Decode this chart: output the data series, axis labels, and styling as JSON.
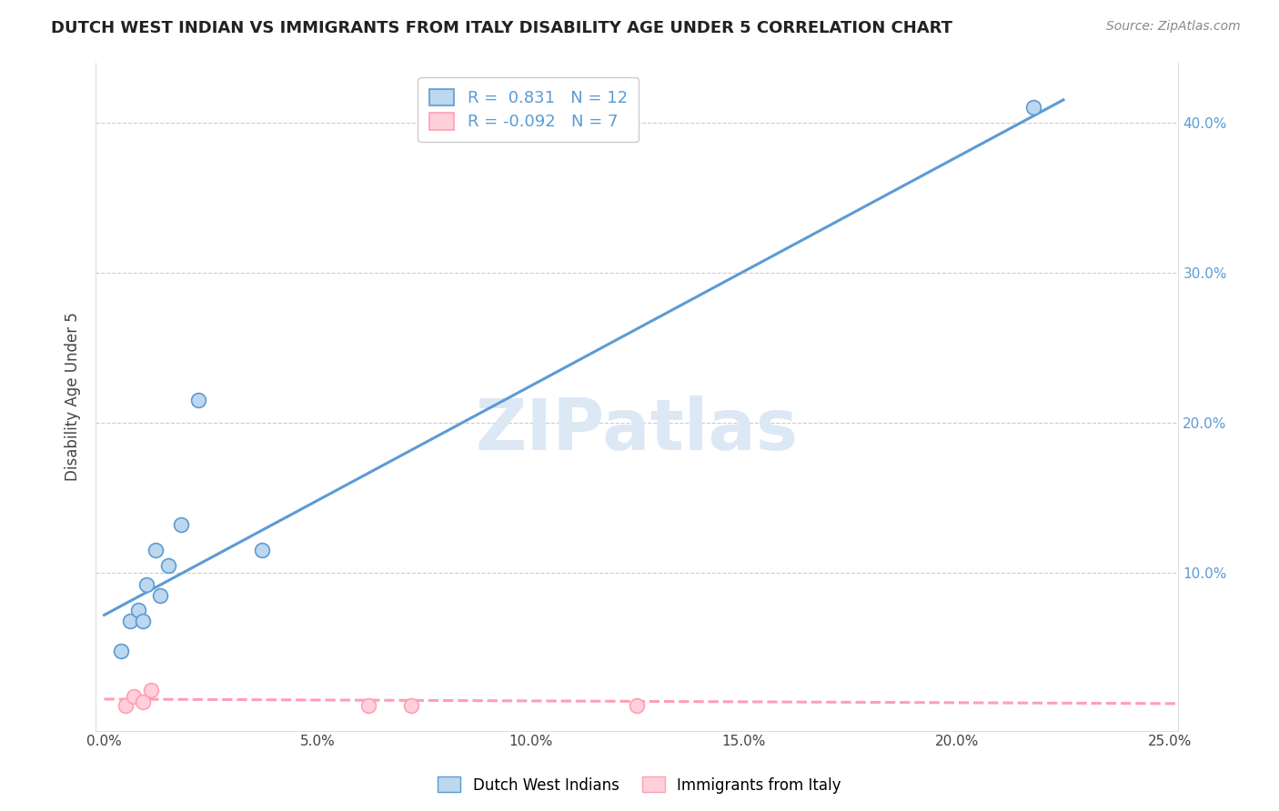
{
  "title": "DUTCH WEST INDIAN VS IMMIGRANTS FROM ITALY DISABILITY AGE UNDER 5 CORRELATION CHART",
  "source": "Source: ZipAtlas.com",
  "xlabel": "",
  "ylabel": "Disability Age Under 5",
  "xlim": [
    -0.002,
    0.252
  ],
  "ylim": [
    -0.005,
    0.44
  ],
  "xticks": [
    0.0,
    0.05,
    0.1,
    0.15,
    0.2,
    0.25
  ],
  "yticks": [
    0.0,
    0.1,
    0.2,
    0.3,
    0.4
  ],
  "right_ytick_labels": [
    "",
    "10.0%",
    "20.0%",
    "30.0%",
    "40.0%"
  ],
  "xtick_labels": [
    "0.0%",
    "5.0%",
    "10.0%",
    "15.0%",
    "20.0%",
    "25.0%"
  ],
  "blue_scatter_x": [
    0.004,
    0.006,
    0.008,
    0.009,
    0.01,
    0.012,
    0.013,
    0.015,
    0.018,
    0.022,
    0.037,
    0.218
  ],
  "blue_scatter_y": [
    0.048,
    0.068,
    0.075,
    0.068,
    0.092,
    0.115,
    0.085,
    0.105,
    0.132,
    0.215,
    0.115,
    0.41
  ],
  "pink_scatter_x": [
    0.005,
    0.007,
    0.009,
    0.011,
    0.062,
    0.072,
    0.125
  ],
  "pink_scatter_y": [
    0.012,
    0.018,
    0.014,
    0.022,
    0.012,
    0.012,
    0.012
  ],
  "blue_line_x": [
    0.0,
    0.225
  ],
  "blue_line_y": [
    0.072,
    0.415
  ],
  "pink_line_x": [
    0.0,
    0.252
  ],
  "pink_line_y": [
    0.016,
    0.013
  ],
  "blue_r": "0.831",
  "blue_n": "12",
  "pink_r": "-0.092",
  "pink_n": "7",
  "blue_color": "#5B9BD5",
  "blue_fill": "#BDD7EE",
  "pink_color": "#FF9EB5",
  "pink_fill": "#FFD0DA",
  "grid_color": "#CCCCCC",
  "background_color": "#FFFFFF",
  "watermark": "ZIPatlas",
  "marker_size": 130,
  "line_width": 2.2
}
